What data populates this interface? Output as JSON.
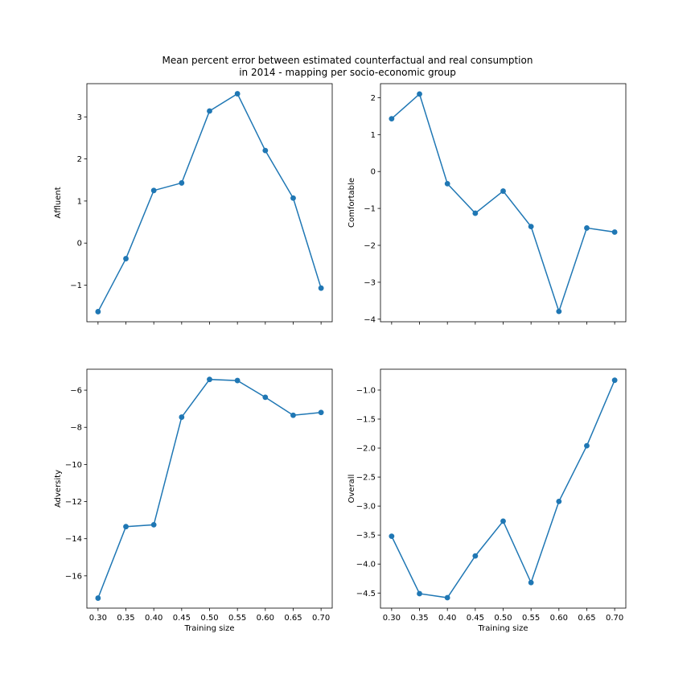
{
  "figure": {
    "title_line1": "Mean percent error between estimated counterfactual and real consumption",
    "title_line2": "in 2014 - mapping per socio-economic group"
  },
  "chart_data": [
    {
      "type": "line",
      "ylabel": "Affluent",
      "xlabel": "",
      "x": [
        0.3,
        0.35,
        0.4,
        0.45,
        0.5,
        0.55,
        0.6,
        0.65,
        0.7
      ],
      "y": [
        -1.63,
        -0.37,
        1.25,
        1.43,
        3.14,
        3.55,
        2.2,
        1.07,
        -1.07
      ],
      "xlim": [
        0.28,
        0.72
      ],
      "ylim": [
        -1.87,
        3.79
      ],
      "yticks": [
        -1,
        0,
        1,
        2,
        3
      ],
      "ytick_labels": [
        "−1",
        "0",
        "1",
        "2",
        "3"
      ],
      "show_xtick_labels": false,
      "color": "#1f77b4"
    },
    {
      "type": "line",
      "ylabel": "Comfortable",
      "xlabel": "",
      "x": [
        0.3,
        0.35,
        0.4,
        0.45,
        0.5,
        0.55,
        0.6,
        0.65,
        0.7
      ],
      "y": [
        1.43,
        2.1,
        -0.33,
        -1.13,
        -0.53,
        -1.49,
        -3.79,
        -1.53,
        -1.64
      ],
      "xlim": [
        0.28,
        0.72
      ],
      "ylim": [
        -4.07,
        2.38
      ],
      "yticks": [
        -4,
        -3,
        -2,
        -1,
        0,
        1,
        2
      ],
      "ytick_labels": [
        "−4",
        "−3",
        "−2",
        "−1",
        "0",
        "1",
        "2"
      ],
      "show_xtick_labels": false,
      "color": "#1f77b4"
    },
    {
      "type": "line",
      "ylabel": "Adversity",
      "xlabel": "Training size",
      "x": [
        0.3,
        0.35,
        0.4,
        0.45,
        0.5,
        0.55,
        0.6,
        0.65,
        0.7
      ],
      "y": [
        -17.2,
        -13.35,
        -13.25,
        -7.45,
        -5.42,
        -5.48,
        -6.38,
        -7.35,
        -7.2
      ],
      "xlim": [
        0.28,
        0.72
      ],
      "ylim": [
        -17.74,
        -4.87
      ],
      "yticks": [
        -16,
        -14,
        -12,
        -10,
        -8,
        -6
      ],
      "ytick_labels": [
        "−16",
        "−14",
        "−12",
        "−10",
        "−8",
        "−6"
      ],
      "xticks": [
        0.3,
        0.35,
        0.4,
        0.45,
        0.5,
        0.55,
        0.6,
        0.65,
        0.7
      ],
      "xtick_labels": [
        "0.30",
        "0.35",
        "0.40",
        "0.45",
        "0.50",
        "0.55",
        "0.60",
        "0.65",
        "0.70"
      ],
      "show_xtick_labels": true,
      "color": "#1f77b4"
    },
    {
      "type": "line",
      "ylabel": "Overall",
      "xlabel": "Training size",
      "x": [
        0.3,
        0.35,
        0.4,
        0.45,
        0.5,
        0.55,
        0.6,
        0.65,
        0.7
      ],
      "y": [
        -3.52,
        -4.51,
        -4.58,
        -3.86,
        -3.26,
        -4.32,
        -2.92,
        -1.96,
        -0.83
      ],
      "xlim": [
        0.28,
        0.72
      ],
      "ylim": [
        -4.76,
        -0.64
      ],
      "yticks": [
        -4.5,
        -4.0,
        -3.5,
        -3.0,
        -2.5,
        -2.0,
        -1.5,
        -1.0
      ],
      "ytick_labels": [
        "−4.5",
        "−4.0",
        "−3.5",
        "−3.0",
        "−2.5",
        "−2.0",
        "−1.5",
        "−1.0"
      ],
      "xticks": [
        0.3,
        0.35,
        0.4,
        0.45,
        0.5,
        0.55,
        0.6,
        0.65,
        0.7
      ],
      "xtick_labels": [
        "0.30",
        "0.35",
        "0.40",
        "0.45",
        "0.50",
        "0.55",
        "0.60",
        "0.65",
        "0.70"
      ],
      "show_xtick_labels": true,
      "color": "#1f77b4"
    }
  ]
}
